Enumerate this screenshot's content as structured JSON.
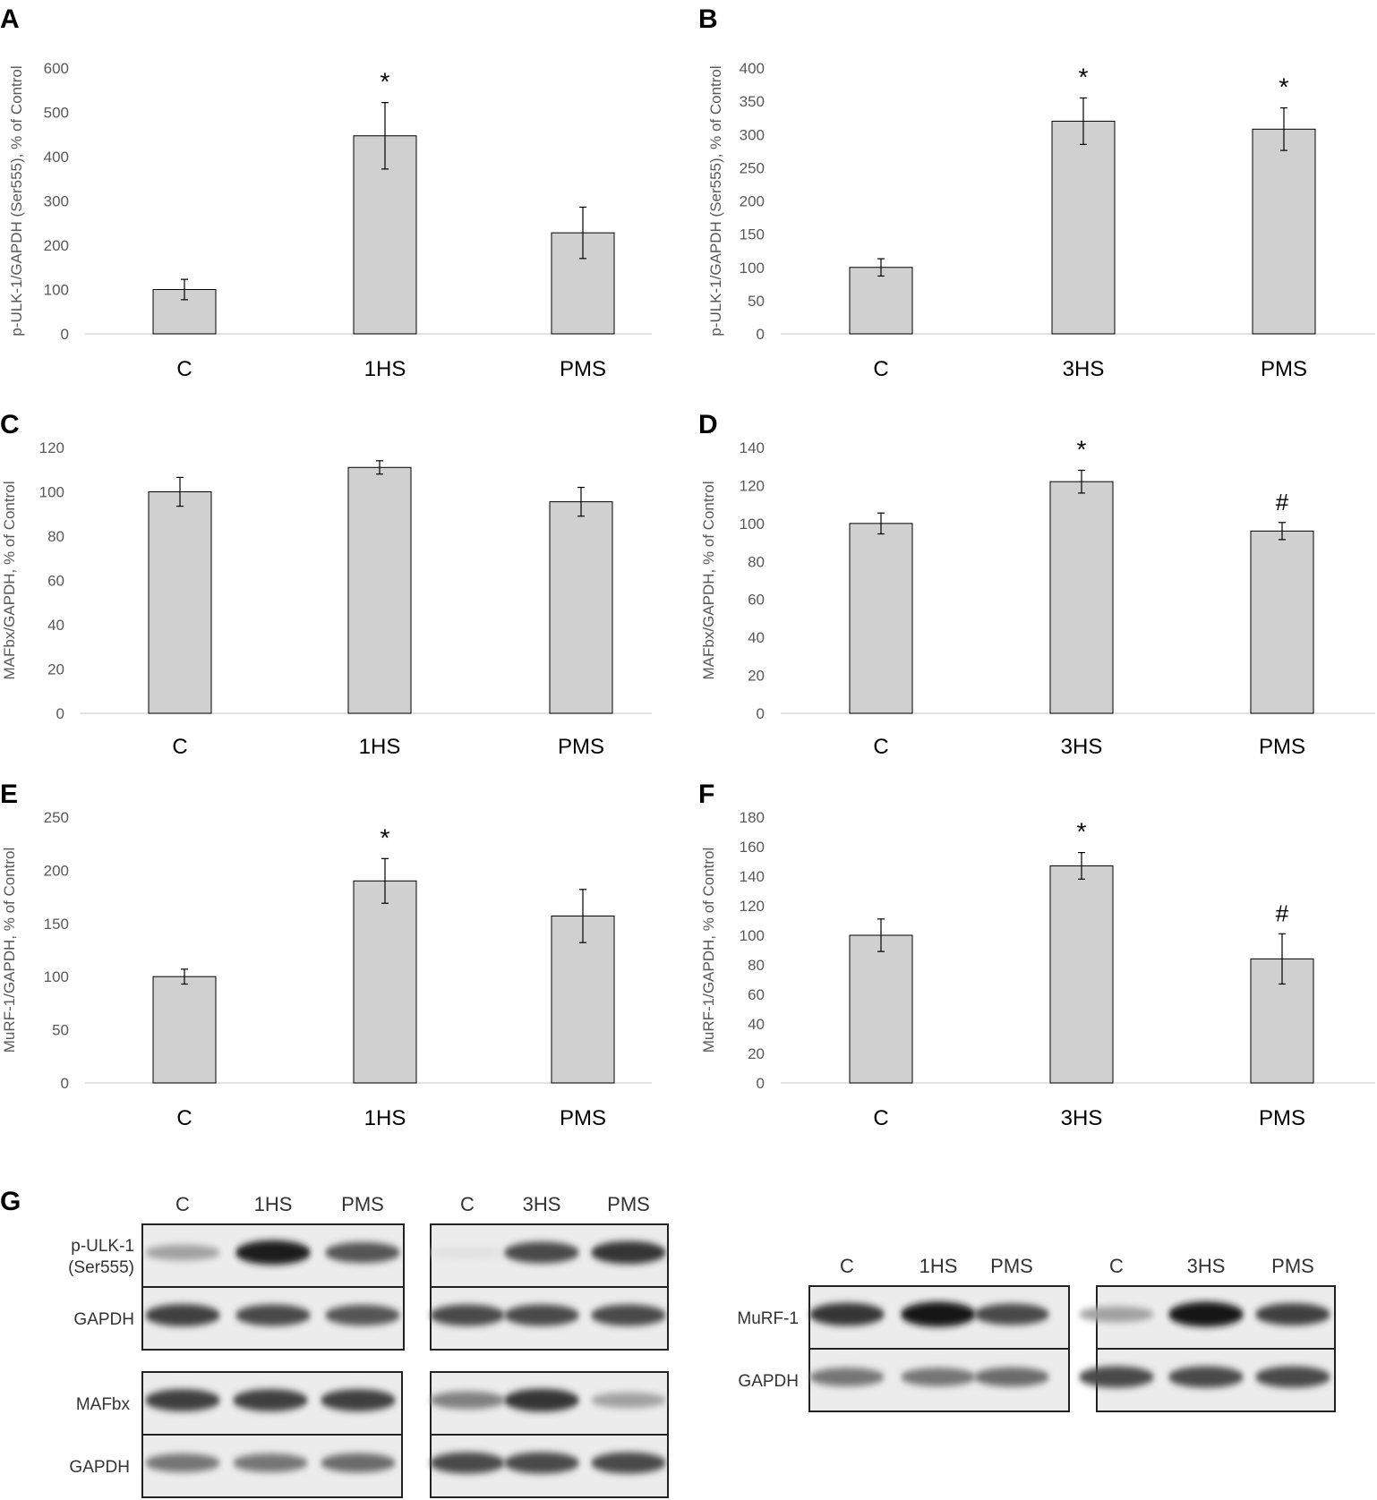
{
  "chart_data": [
    {
      "panel": "A",
      "type": "bar",
      "categories": [
        "C",
        "1HS",
        "PMS"
      ],
      "values": [
        100,
        447,
        228
      ],
      "errors": [
        23,
        75,
        58
      ],
      "annotations": [
        "",
        "*",
        ""
      ],
      "ylabel": "p-ULK-1/GAPDH (Ser555), % of  Control",
      "ylim": [
        0,
        600
      ],
      "yticks": [
        0,
        100,
        200,
        300,
        400,
        500,
        600
      ],
      "grid": false,
      "bar_color": "#d0d0d0"
    },
    {
      "panel": "B",
      "type": "bar",
      "categories": [
        "C",
        "3HS",
        "PMS"
      ],
      "values": [
        100,
        320,
        308
      ],
      "errors": [
        13,
        35,
        32
      ],
      "annotations": [
        "",
        "*",
        "*"
      ],
      "ylabel": "p-ULK-1/GAPDH (Ser555), % of  Control",
      "ylim": [
        0,
        400
      ],
      "yticks": [
        0,
        50,
        100,
        150,
        200,
        250,
        300,
        350,
        400
      ],
      "grid": false,
      "bar_color": "#d0d0d0"
    },
    {
      "panel": "C",
      "type": "bar",
      "categories": [
        "C",
        "1HS",
        "PMS"
      ],
      "values": [
        100,
        111,
        95.5
      ],
      "errors": [
        6.5,
        3,
        6.5
      ],
      "annotations": [
        "",
        "",
        ""
      ],
      "ylabel": "MAFbx/GAPDH, % of Control",
      "ylim": [
        0,
        120
      ],
      "yticks": [
        0,
        20,
        40,
        60,
        80,
        100,
        120
      ],
      "grid": false,
      "bar_color": "#d0d0d0"
    },
    {
      "panel": "D",
      "type": "bar",
      "categories": [
        "C",
        "3HS",
        "PMS"
      ],
      "values": [
        100,
        122,
        96
      ],
      "errors": [
        5.5,
        6,
        4.5
      ],
      "annotations": [
        "",
        "*",
        "#"
      ],
      "ylabel": "MAFbx/GAPDH, % of Control",
      "ylim": [
        0,
        140
      ],
      "yticks": [
        0,
        20,
        40,
        60,
        80,
        100,
        120,
        140
      ],
      "grid": false,
      "bar_color": "#d0d0d0"
    },
    {
      "panel": "E",
      "type": "bar",
      "categories": [
        "C",
        "1HS",
        "PMS"
      ],
      "values": [
        100,
        190,
        157
      ],
      "errors": [
        7,
        21,
        25
      ],
      "annotations": [
        "",
        "*",
        ""
      ],
      "ylabel": "MuRF-1/GAPDH, % of Control",
      "ylim": [
        0,
        250
      ],
      "yticks": [
        0,
        50,
        100,
        150,
        200,
        250
      ],
      "grid": false,
      "bar_color": "#d0d0d0"
    },
    {
      "panel": "F",
      "type": "bar",
      "categories": [
        "C",
        "3HS",
        "PMS"
      ],
      "values": [
        100,
        147,
        84
      ],
      "errors": [
        11,
        9,
        17
      ],
      "annotations": [
        "",
        "*",
        "#"
      ],
      "ylabel": "MuRF-1/GAPDH, % of Control",
      "ylim": [
        0,
        180
      ],
      "yticks": [
        0,
        20,
        40,
        60,
        80,
        100,
        120,
        140,
        160,
        180
      ],
      "grid": false,
      "bar_color": "#d0d0d0"
    }
  ],
  "panel_g": {
    "letter": "G",
    "groups": [
      {
        "lanes": [
          "C",
          "1HS",
          "PMS"
        ],
        "rows": [
          {
            "label": "p-ULK-1\n(Ser555)",
            "intensity": [
              0.35,
              0.95,
              0.7
            ]
          },
          {
            "label": "GAPDH",
            "intensity": [
              0.8,
              0.75,
              0.7
            ]
          }
        ]
      },
      {
        "lanes": [
          "C",
          "3HS",
          "PMS"
        ],
        "rows": [
          {
            "label": "",
            "intensity": [
              0.05,
              0.75,
              0.85
            ]
          },
          {
            "label": "",
            "intensity": [
              0.75,
              0.75,
              0.75
            ]
          }
        ]
      },
      {
        "lanes": [],
        "rows": [
          {
            "label": "MAFbx",
            "intensity": [
              0.8,
              0.8,
              0.8
            ]
          },
          {
            "label": "GAPDH",
            "intensity": [
              0.55,
              0.55,
              0.6
            ]
          }
        ]
      },
      {
        "lanes": [],
        "rows": [
          {
            "label": "",
            "intensity": [
              0.5,
              0.85,
              0.35
            ]
          },
          {
            "label": "",
            "intensity": [
              0.75,
              0.75,
              0.75
            ]
          }
        ]
      },
      {
        "lanes": [
          "C",
          "1HS",
          "PMS"
        ],
        "rows": [
          {
            "label": "MuRF-1",
            "intensity": [
              0.85,
              1.0,
              0.75
            ]
          },
          {
            "label": "GAPDH",
            "intensity": [
              0.55,
              0.55,
              0.6
            ]
          }
        ]
      },
      {
        "lanes": [
          "C",
          "3HS",
          "PMS"
        ],
        "rows": [
          {
            "label": "",
            "intensity": [
              0.35,
              1.0,
              0.8
            ]
          },
          {
            "label": "",
            "intensity": [
              0.75,
              0.75,
              0.75
            ]
          }
        ]
      }
    ]
  }
}
